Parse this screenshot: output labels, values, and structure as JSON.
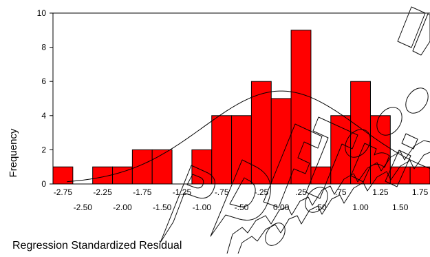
{
  "chart_data": {
    "type": "bar",
    "title": "",
    "xlabel": "Regression Standardized Residual",
    "ylabel": "Frequency",
    "bin_width": 0.25,
    "xlim": [
      -2.875,
      1.875
    ],
    "ylim": [
      0,
      10
    ],
    "yticks": [
      0,
      2,
      4,
      6,
      8,
      10
    ],
    "xtick_labels_row1": [
      "-2.75",
      "-2.25",
      "-1.75",
      "-1.25",
      "-.75",
      "-.25",
      ".25",
      ".75",
      "1.25",
      "1.75"
    ],
    "xtick_labels_row2": [
      "-2.50",
      "-2.00",
      "-1.50",
      "-1.00",
      "-.50",
      "0.00",
      ".50",
      "1.00",
      "1.50"
    ],
    "bin_centers": [
      -2.75,
      -2.25,
      -2.0,
      -1.75,
      -1.5,
      -1.0,
      -0.75,
      -0.5,
      -0.25,
      0.0,
      0.25,
      0.5,
      0.75,
      1.0,
      1.25,
      1.5,
      1.75
    ],
    "values": [
      1,
      1,
      1,
      2,
      2,
      2,
      4,
      4,
      6,
      5,
      9,
      1,
      4,
      6,
      4,
      1,
      1
    ],
    "bar_color": "#ff0000",
    "bar_edge_color": "#000000",
    "normal_curve": {
      "shown": true,
      "mean": 0.0,
      "sd": 0.99,
      "n": 54
    },
    "grid": false,
    "watermark_text": "PDF Trial www.pdfwizard.com"
  }
}
